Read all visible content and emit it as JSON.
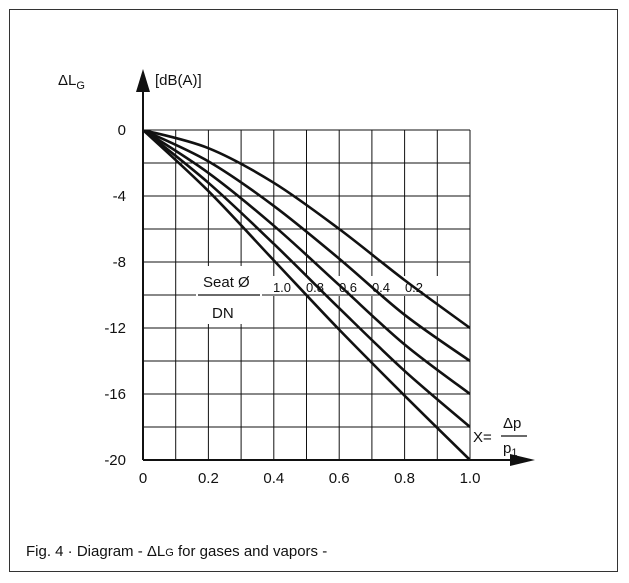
{
  "caption": {
    "prefix": "Fig. 4 · Diagram - ",
    "delta": "ΔL",
    "sub": "G",
    "suffix": " for gases and vapors -"
  },
  "chart_data": {
    "type": "line",
    "title": "",
    "ylabel": {
      "delta": "ΔL",
      "sub": "G",
      "unit": "[dB(A)]"
    },
    "xlabel": {
      "prefix": "X=",
      "num": "Δp",
      "den_main": "p",
      "den_sub": "1"
    },
    "xlim": [
      0,
      1.0
    ],
    "ylim": [
      -20,
      0
    ],
    "x_ticks": [
      "0",
      "0.2",
      "0.4",
      "0.6",
      "0.8",
      "1.0"
    ],
    "x_tick_values": [
      0,
      0.2,
      0.4,
      0.6,
      0.8,
      1.0
    ],
    "y_ticks": [
      "0",
      "-4",
      "-8",
      "-12",
      "-16",
      "-20"
    ],
    "y_tick_values": [
      0,
      -4,
      -8,
      -12,
      -16,
      -20
    ],
    "grid": true,
    "grid_x_step": 0.1,
    "grid_y_step": 2,
    "legend": {
      "line1": "Seat Ø",
      "line2": "DN"
    },
    "series": [
      {
        "name": "1.0",
        "points": [
          [
            0,
            0
          ],
          [
            0.2,
            -3.7
          ],
          [
            0.4,
            -7.9
          ],
          [
            0.6,
            -12.1
          ],
          [
            0.8,
            -16.1
          ],
          [
            1.0,
            -20.0
          ]
        ]
      },
      {
        "name": "0.8",
        "points": [
          [
            0,
            0
          ],
          [
            0.2,
            -3.2
          ],
          [
            0.4,
            -6.9
          ],
          [
            0.6,
            -10.8
          ],
          [
            0.8,
            -14.6
          ],
          [
            1.0,
            -18.0
          ]
        ]
      },
      {
        "name": "0.6",
        "points": [
          [
            0,
            0
          ],
          [
            0.2,
            -2.6
          ],
          [
            0.4,
            -5.8
          ],
          [
            0.6,
            -9.4
          ],
          [
            0.8,
            -13.0
          ],
          [
            1.0,
            -16.0
          ]
        ]
      },
      {
        "name": "0.4",
        "points": [
          [
            0,
            0
          ],
          [
            0.2,
            -1.9
          ],
          [
            0.4,
            -4.6
          ],
          [
            0.6,
            -7.8
          ],
          [
            0.8,
            -11.2
          ],
          [
            1.0,
            -14.0
          ]
        ]
      },
      {
        "name": "0.2",
        "points": [
          [
            0,
            0
          ],
          [
            0.2,
            -1.1
          ],
          [
            0.4,
            -3.2
          ],
          [
            0.6,
            -6.0
          ],
          [
            0.8,
            -9.1
          ],
          [
            1.0,
            -12.0
          ]
        ]
      }
    ]
  }
}
